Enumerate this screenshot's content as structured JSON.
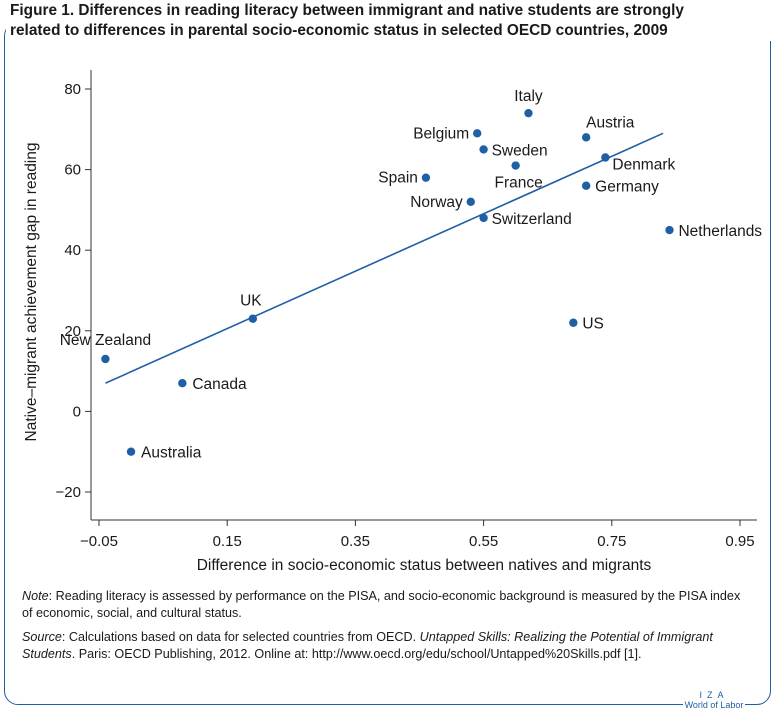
{
  "title": {
    "line1": "Figure 1. Differences in reading literacy between immigrant and native students are strongly",
    "line2": "related to differences in parental socio-economic status in selected OECD countries, 2009"
  },
  "colors": {
    "accent": "#1f5fa6",
    "axis": "#333333"
  },
  "chart_data": {
    "type": "scatter",
    "xlabel": "Difference in socio-economic status between natives and migrants",
    "ylabel": "Native–migrant achievement gap in reading",
    "xlim": [
      -0.1,
      1.0
    ],
    "ylim": [
      -25,
      85
    ],
    "x_ticks": [
      -0.05,
      0.15,
      0.35,
      0.55,
      0.75,
      0.95
    ],
    "x_tick_labels": [
      "−0.05",
      "0.15",
      "0.35",
      "0.55",
      "0.75",
      "0.95"
    ],
    "y_ticks": [
      -20,
      0,
      20,
      40,
      60,
      80
    ],
    "y_tick_labels": [
      "−20",
      "0",
      "20",
      "40",
      "60",
      "80"
    ],
    "grid": false,
    "points": [
      {
        "label": "New Zealand",
        "x": -0.04,
        "y": 13
      },
      {
        "label": "Australia",
        "x": 0.0,
        "y": -10
      },
      {
        "label": "Canada",
        "x": 0.08,
        "y": 7
      },
      {
        "label": "UK",
        "x": 0.19,
        "y": 23
      },
      {
        "label": "Spain",
        "x": 0.46,
        "y": 58
      },
      {
        "label": "Norway",
        "x": 0.53,
        "y": 52
      },
      {
        "label": "Belgium",
        "x": 0.54,
        "y": 69
      },
      {
        "label": "Switzerland",
        "x": 0.55,
        "y": 48
      },
      {
        "label": "Sweden",
        "x": 0.55,
        "y": 65
      },
      {
        "label": "France",
        "x": 0.6,
        "y": 61
      },
      {
        "label": "Italy",
        "x": 0.62,
        "y": 74
      },
      {
        "label": "US",
        "x": 0.69,
        "y": 22
      },
      {
        "label": "Austria",
        "x": 0.71,
        "y": 68
      },
      {
        "label": "Germany",
        "x": 0.71,
        "y": 56
      },
      {
        "label": "Denmark",
        "x": 0.74,
        "y": 63
      },
      {
        "label": "Netherlands",
        "x": 0.84,
        "y": 45
      }
    ],
    "trendline": {
      "x": [
        -0.04,
        0.83
      ],
      "y": [
        7,
        69
      ]
    }
  },
  "notes": {
    "note_label": "Note",
    "note_text": ": Reading literacy is assessed by performance on the PISA, and socio-economic background is measured by the PISA index of economic, social, and cultural status.",
    "source_label": "Source",
    "source_text1": ": Calculations based on data for selected countries from OECD. ",
    "source_title": "Untapped Skills: Realizing the Potential of Immigrant Students",
    "source_text2": ". Paris: OECD Publishing, 2012. Online at: http://www.oecd.org/edu/school/Untapped%20Skills.pdf [1]."
  },
  "logo": {
    "iza": "IZA",
    "wol": "World of Labor"
  }
}
